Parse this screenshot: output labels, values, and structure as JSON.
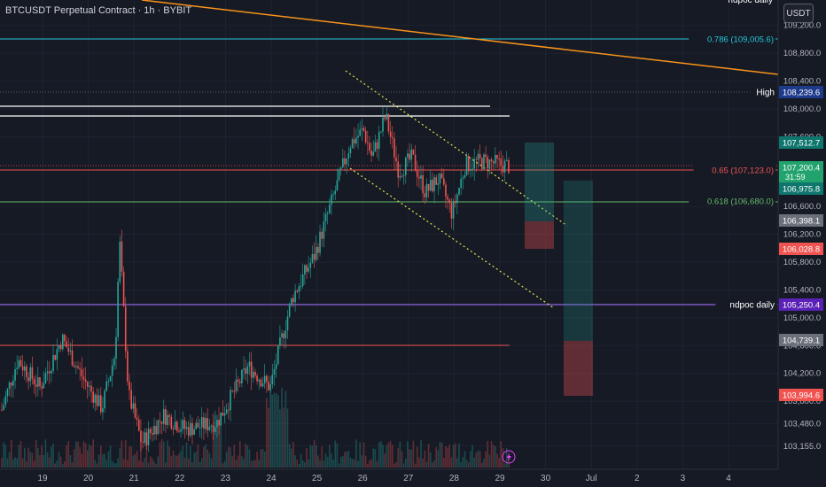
{
  "header": {
    "title": "BTCUSDT Perpetual Contract · 1h · BYBIT",
    "currency": "USDT"
  },
  "colors": {
    "background": "#161a25",
    "up": "#26a69a",
    "down": "#ef5350",
    "text": "#b2b5be"
  },
  "chart_data": {
    "type": "candlestick",
    "timeframe": "1h",
    "y_axis": {
      "ticks": [
        "109,200.0",
        "108,800.0",
        "108,400.0",
        "108,000.0",
        "107,600.0",
        "106,600.0",
        "106,200.0",
        "105,800.0",
        "105,400.0",
        "105,000.0",
        "104,600.0",
        "104,200.0",
        "103,800.0",
        "103,480.0",
        "103,155.0"
      ]
    },
    "x_axis": {
      "ticks": [
        "19",
        "20",
        "21",
        "22",
        "23",
        "24",
        "25",
        "26",
        "27",
        "28",
        "29",
        "30",
        "Jul",
        "2",
        "3",
        "4"
      ]
    },
    "price_labels": [
      {
        "text": "High",
        "value": "108,239.6",
        "color": "#1e3a8a"
      },
      {
        "text": "",
        "value": "107,512.7",
        "color": "#0f766e"
      },
      {
        "text": "",
        "value": "107,200.4",
        "sub": "31:59",
        "color": "#22a36e"
      },
      {
        "text": "",
        "value": "106,975.8",
        "color": "#0f766e"
      },
      {
        "text": "",
        "value": "106,398.1",
        "color": "#6b6f7a"
      },
      {
        "text": "",
        "value": "106,028.8",
        "color": "#ef5350"
      },
      {
        "text": "ndpoc daily",
        "value": "105,250.4",
        "color": "#5b21b6"
      },
      {
        "text": "",
        "value": "104,739.1",
        "color": "#6b6f7a"
      },
      {
        "text": "",
        "value": "103,994.6",
        "color": "#ef5350"
      }
    ],
    "fib_levels": [
      {
        "label": "0.786 (109,005.6)",
        "value": 109005.6,
        "color": "#26c6da"
      },
      {
        "label": "0.65 (107,123.0)",
        "value": 107123.0,
        "color": "#ef5350"
      },
      {
        "label": "0.618 (106,680.0)",
        "value": 106680.0,
        "color": "#66bb6a"
      }
    ],
    "annotations": [
      {
        "text": "ndpoc daily",
        "color": "#7e57c2"
      },
      {
        "text": "ndpoc daily",
        "color": "#ffffff"
      }
    ]
  }
}
